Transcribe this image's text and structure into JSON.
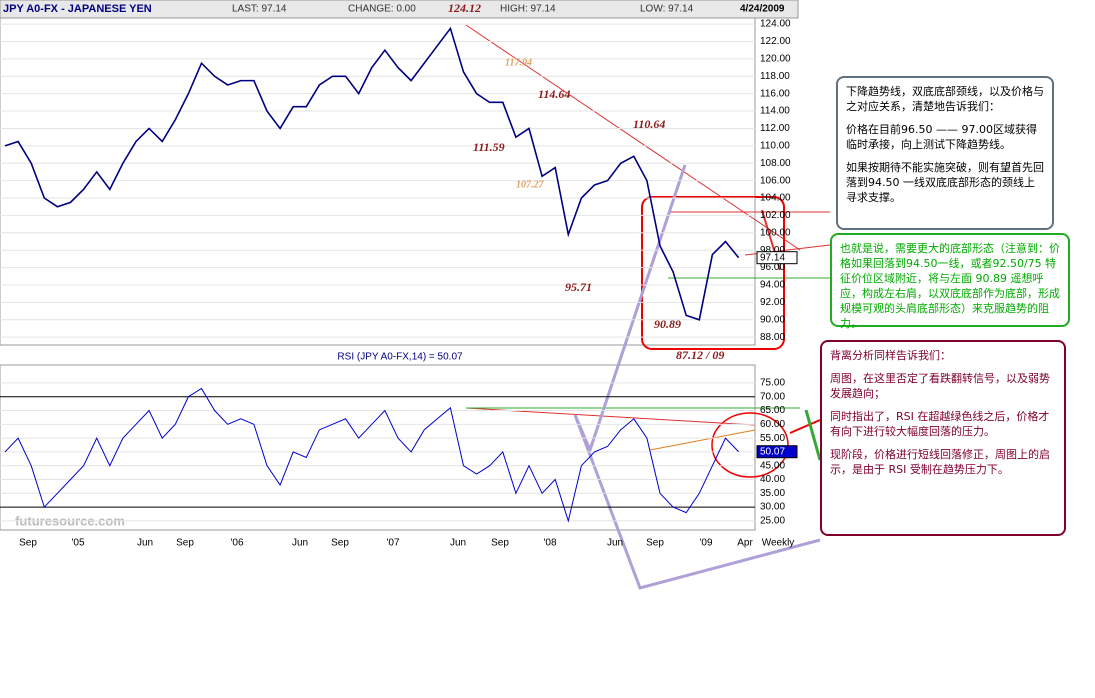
{
  "header": {
    "title": "JPY A0-FX - JAPANESE YEN",
    "last": "LAST: 97.14",
    "change": "CHANGE: 0.00",
    "peak": "124.12",
    "high": "HIGH: 97.14",
    "low": "LOW: 97.14",
    "date": "4/24/2009"
  },
  "chart_data": [
    {
      "type": "line",
      "color": "#000080",
      "values": [
        110,
        110.5,
        108,
        104,
        103,
        103.5,
        105,
        107,
        105,
        108,
        110.5,
        112,
        110.5,
        113,
        116,
        119.5,
        118,
        117,
        117.5,
        117.5,
        114,
        112,
        114.5,
        114.5,
        117,
        118,
        118,
        116,
        119,
        121,
        119,
        117.5,
        119.5,
        121.5,
        123.5,
        118.5,
        116,
        115,
        115,
        111,
        112,
        106.5,
        107.5,
        99.8,
        104,
        105.5,
        106,
        108,
        108.8,
        106,
        98.5,
        95.5,
        90.5,
        90,
        97.5,
        99,
        97.14
      ],
      "ylim": [
        87.1,
        124.7
      ],
      "yticks": [
        {
          "value": 88,
          "label": "88.00"
        },
        {
          "value": 90,
          "label": "90.00"
        },
        {
          "value": 92,
          "label": "92.00"
        },
        {
          "value": 94,
          "label": "94.00"
        },
        {
          "value": 96,
          "label": "96.00"
        },
        {
          "value": 98,
          "label": "98.00"
        },
        {
          "value": 100,
          "label": "100.00"
        },
        {
          "value": 102,
          "label": "102.00"
        },
        {
          "value": 104,
          "label": "104.00"
        },
        {
          "value": 106,
          "label": "106.00"
        },
        {
          "value": 108,
          "label": "108.00"
        },
        {
          "value": 110,
          "label": "110.00"
        },
        {
          "value": 112,
          "label": "112.00"
        },
        {
          "value": 114,
          "label": "114.00"
        },
        {
          "value": 116,
          "label": "116.00"
        },
        {
          "value": 118,
          "label": "118.00"
        },
        {
          "value": 120,
          "label": "120.00"
        },
        {
          "value": 122,
          "label": "122.00"
        },
        {
          "value": 124,
          "label": "124.00"
        }
      ],
      "last_label": "97.14",
      "annotations": [
        "117.94",
        "114.64",
        "110.64",
        "111.59",
        "107.27",
        "95.71",
        "90.89",
        "87.12 / 09"
      ]
    },
    {
      "type": "line",
      "title": "RSI (JPY A0-FX,14) = 50.07",
      "color": "#0000cc",
      "values": [
        50,
        55,
        45,
        30,
        35,
        40,
        45,
        55,
        45,
        55,
        60,
        65,
        55,
        60,
        70,
        73,
        65,
        60,
        62,
        60,
        45,
        38,
        50,
        48,
        58,
        60,
        62,
        55,
        60,
        65,
        55,
        50,
        58,
        62,
        66,
        45,
        42,
        45,
        50,
        35,
        45,
        35,
        40,
        25,
        45,
        50,
        52,
        58,
        62,
        55,
        35,
        30,
        28,
        35,
        45,
        55,
        50.07
      ],
      "ylim": [
        21.7,
        81.5
      ],
      "yticks": [
        {
          "value": 25,
          "label": "25.00"
        },
        {
          "value": 30,
          "label": "30.00"
        },
        {
          "value": 35,
          "label": "35.00"
        },
        {
          "value": 40,
          "label": "40.00"
        },
        {
          "value": 45,
          "label": "45.00"
        },
        {
          "value": 50,
          "label": "50.00"
        },
        {
          "value": 55,
          "label": "55.00"
        },
        {
          "value": 60,
          "label": "60.00"
        },
        {
          "value": 65,
          "label": "65.00"
        },
        {
          "value": 70,
          "label": "70.00"
        },
        {
          "value": 75,
          "label": "75.00"
        }
      ],
      "last_label": "50.07",
      "xtick_labels": [
        "Sep",
        "'05",
        "Jun",
        "Sep",
        "'06",
        "Jun",
        "Sep",
        "'07",
        "Jun",
        "Sep",
        "'08",
        "Jun",
        "Sep",
        "'09",
        "Apr",
        "Weekly"
      ],
      "watermark": "futuresource.com"
    }
  ],
  "notes": [
    {
      "paragraphs": [
        "下降趋势线，双底底部颈线，以及价格与之对应关系，清楚地告诉我们：",
        "价格在目前96.50 —— 97.00区域获得临时承接，向上测试下降趋势线。",
        "如果按期待不能实施突破，则有望首先回落到94.50 一线双底底部形态的颈线上寻求支撑。"
      ]
    },
    {
      "paragraphs": [
        "也就是说，需要更大的底部形态（注意到：价格如果回落到94.50一线，或者92.50/75 特征价位区域附近，将与左面 90.89 遥想呼应，构成左右肩，以双底底部作为底部，形成规模可观的头肩底部形态）来克服趋势的阻力。"
      ]
    },
    {
      "paragraphs": [
        "背离分析同样告诉我们：",
        "周图，在这里否定了看跌翻转信号，以及弱势发展趋向；",
        "同时指出了，RSI 在超越绿色线之后，价格才有向下进行较大幅度回落的压力。",
        "现阶段，价格进行短线回落修正，周图上的启示，是由于 RSI 受制在趋势压力下。"
      ]
    }
  ]
}
